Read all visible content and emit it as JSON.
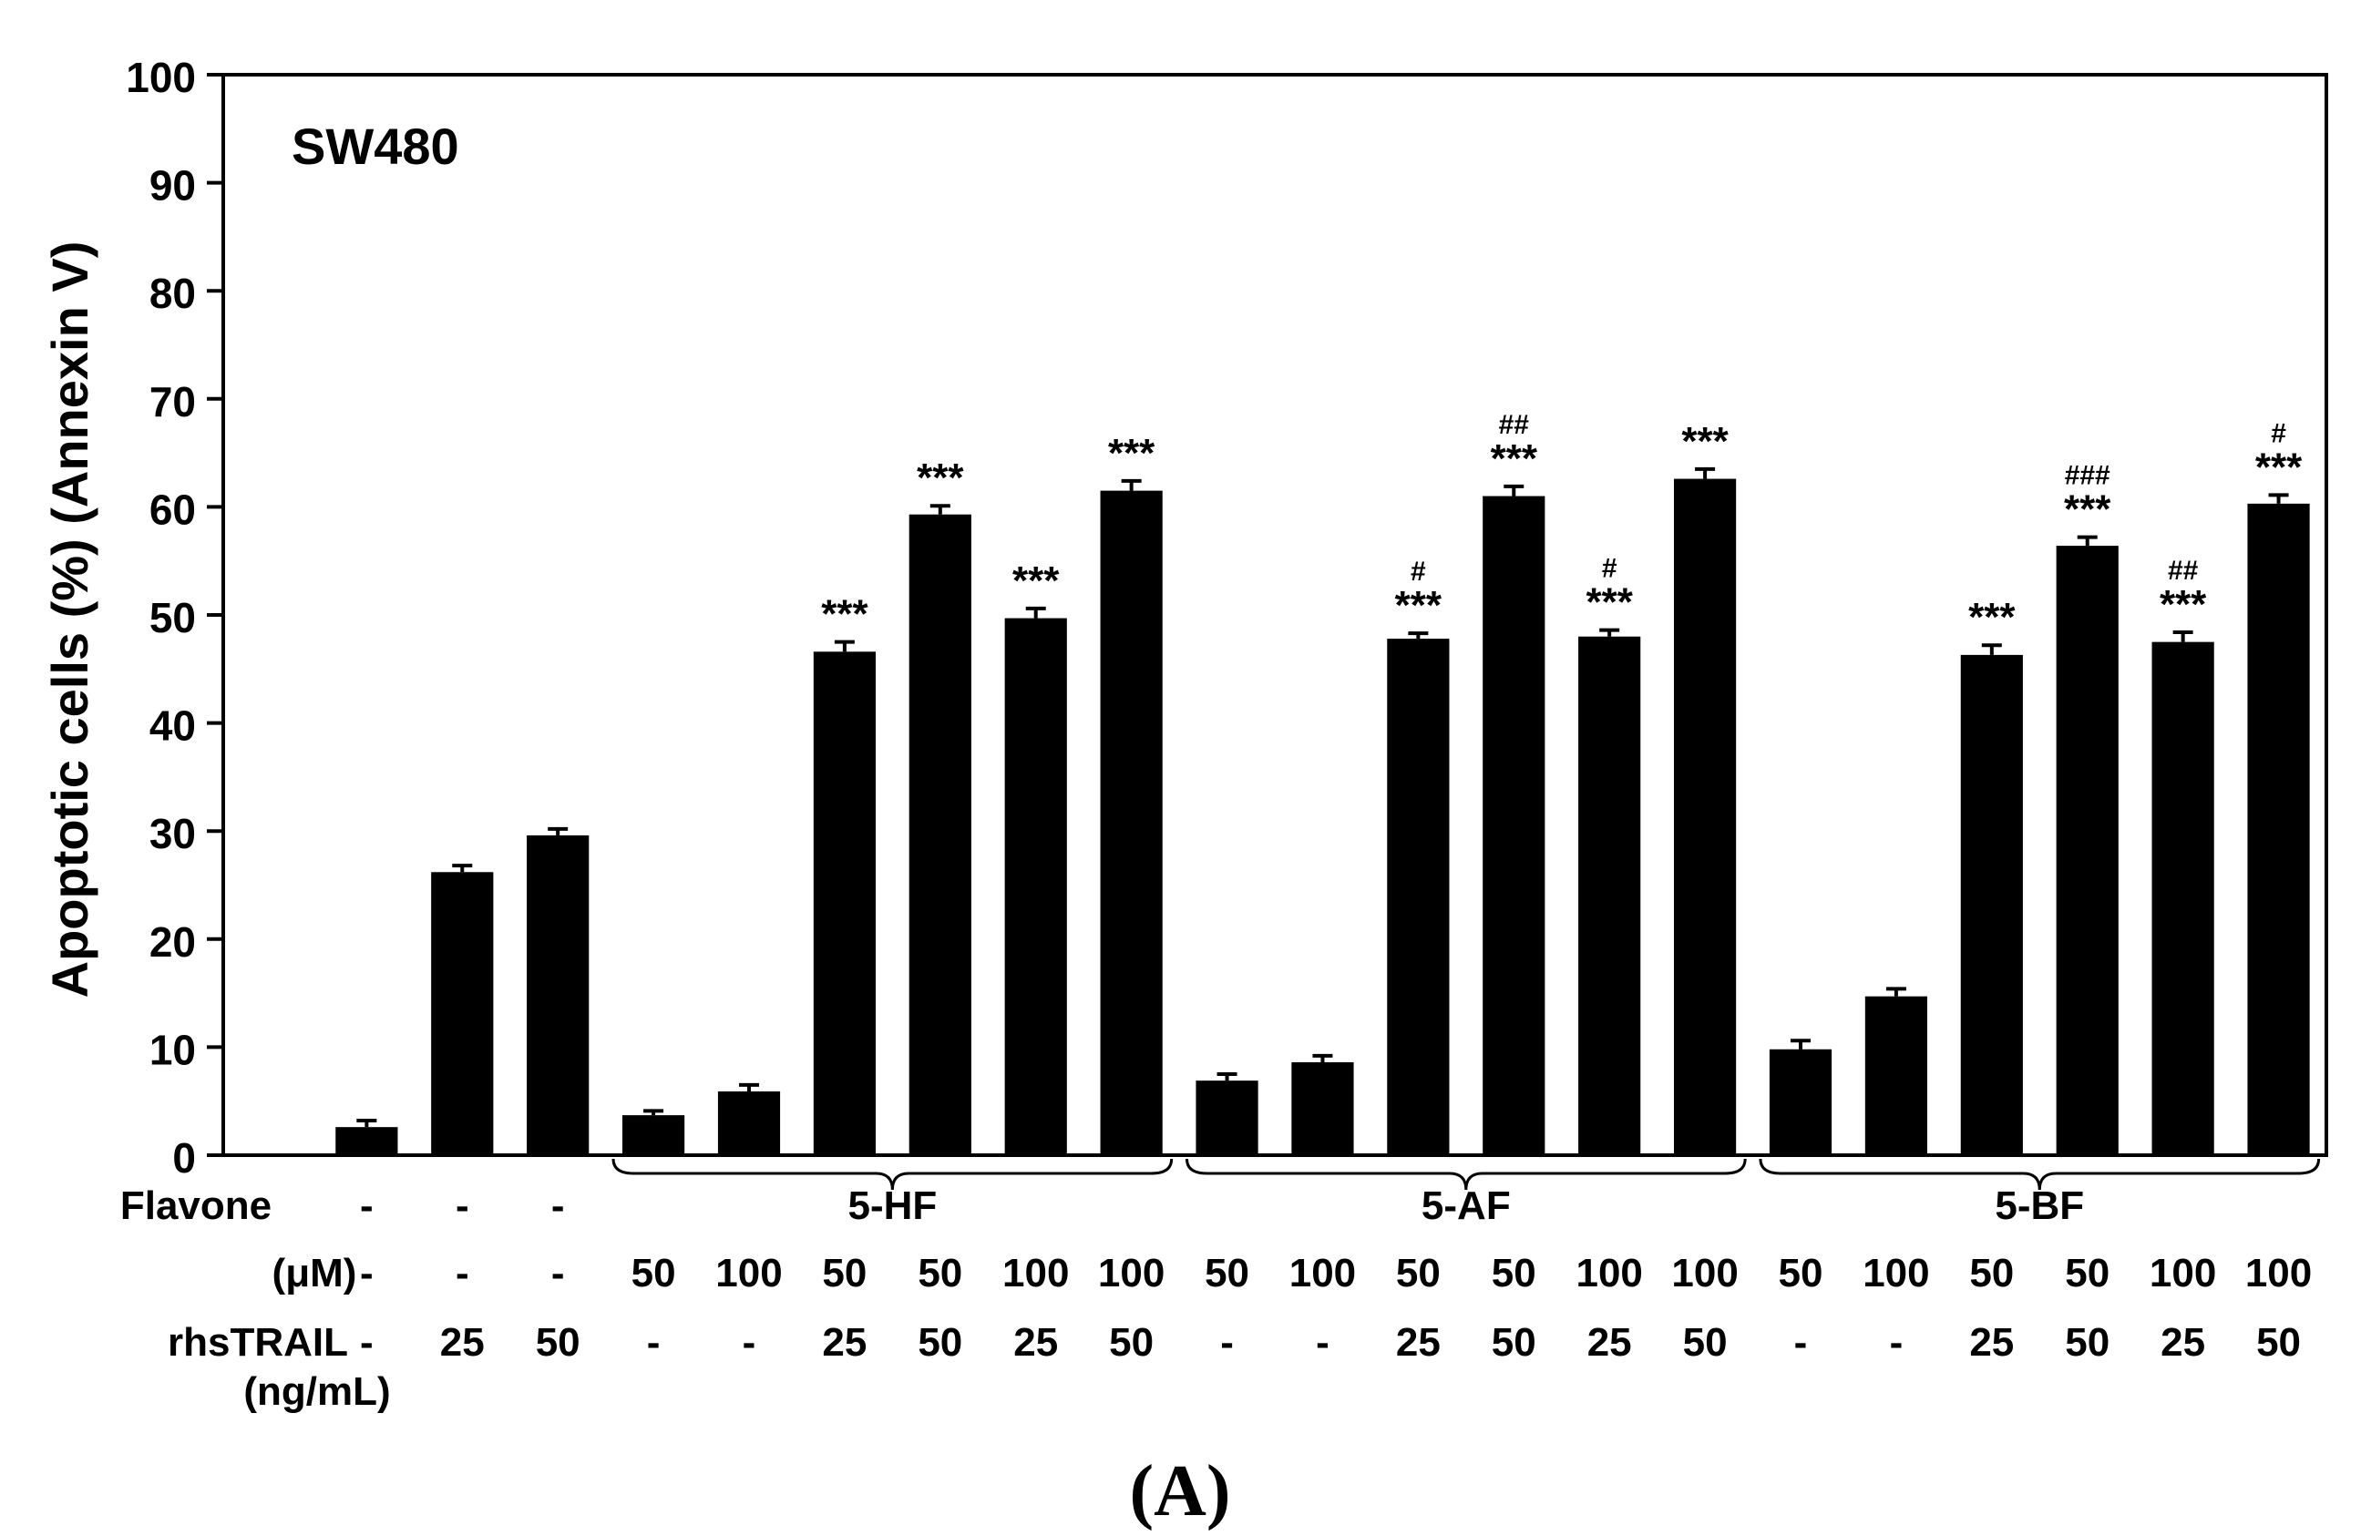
{
  "chart_data": {
    "type": "bar",
    "panel_title": "SW480",
    "ylabel": "Apoptotic cells (%) (Annexin V)",
    "ylim": [
      0,
      100
    ],
    "yticks": [
      0,
      10,
      20,
      30,
      40,
      50,
      60,
      70,
      80,
      90,
      100
    ],
    "grid": false,
    "bar_color": "#000000",
    "values": [
      0,
      2.6,
      26.2,
      29.6,
      3.7,
      5.9,
      46.6,
      59.3,
      49.7,
      61.5,
      6.9,
      8.6,
      47.8,
      61.0,
      48.0,
      62.6,
      9.8,
      14.7,
      46.3,
      56.4,
      47.5,
      60.3
    ],
    "errors": [
      0,
      0.6,
      0.6,
      0.6,
      0.4,
      0.6,
      0.9,
      0.8,
      0.9,
      0.9,
      0.6,
      0.6,
      0.5,
      0.9,
      0.6,
      0.9,
      0.8,
      0.7,
      0.9,
      0.8,
      0.9,
      0.8
    ],
    "annotations": [
      "",
      "",
      "",
      "",
      "",
      "",
      "***",
      "***",
      "***",
      "***",
      "",
      "",
      "#\n***",
      "##\n***",
      "#\n***",
      "***",
      "",
      "",
      "***",
      "###\n***",
      "##\n***",
      "#\n***"
    ],
    "row_labels": {
      "flavone": "Flavone",
      "conc": "(μM)",
      "trail": [
        "rhsTRAIL",
        "(ng/mL)"
      ]
    },
    "flavone_row": [
      "",
      "-",
      "-",
      "-"
    ],
    "conc_row": [
      "",
      "-",
      "-",
      "-",
      "50",
      "100",
      "50",
      "50",
      "100",
      "100",
      "50",
      "100",
      "50",
      "50",
      "100",
      "100",
      "50",
      "100",
      "50",
      "50",
      "100",
      "100"
    ],
    "trail_row": [
      "",
      "-",
      "25",
      "50",
      "-",
      "-",
      "25",
      "50",
      "25",
      "50",
      "-",
      "-",
      "25",
      "50",
      "25",
      "50",
      "-",
      "-",
      "25",
      "50",
      "25",
      "50"
    ],
    "groups": [
      {
        "name": "5-HF",
        "start": 4,
        "end": 9
      },
      {
        "name": "5-AF",
        "start": 10,
        "end": 15
      },
      {
        "name": "5-BF",
        "start": 16,
        "end": 21
      }
    ]
  },
  "panel_label": "(A)"
}
